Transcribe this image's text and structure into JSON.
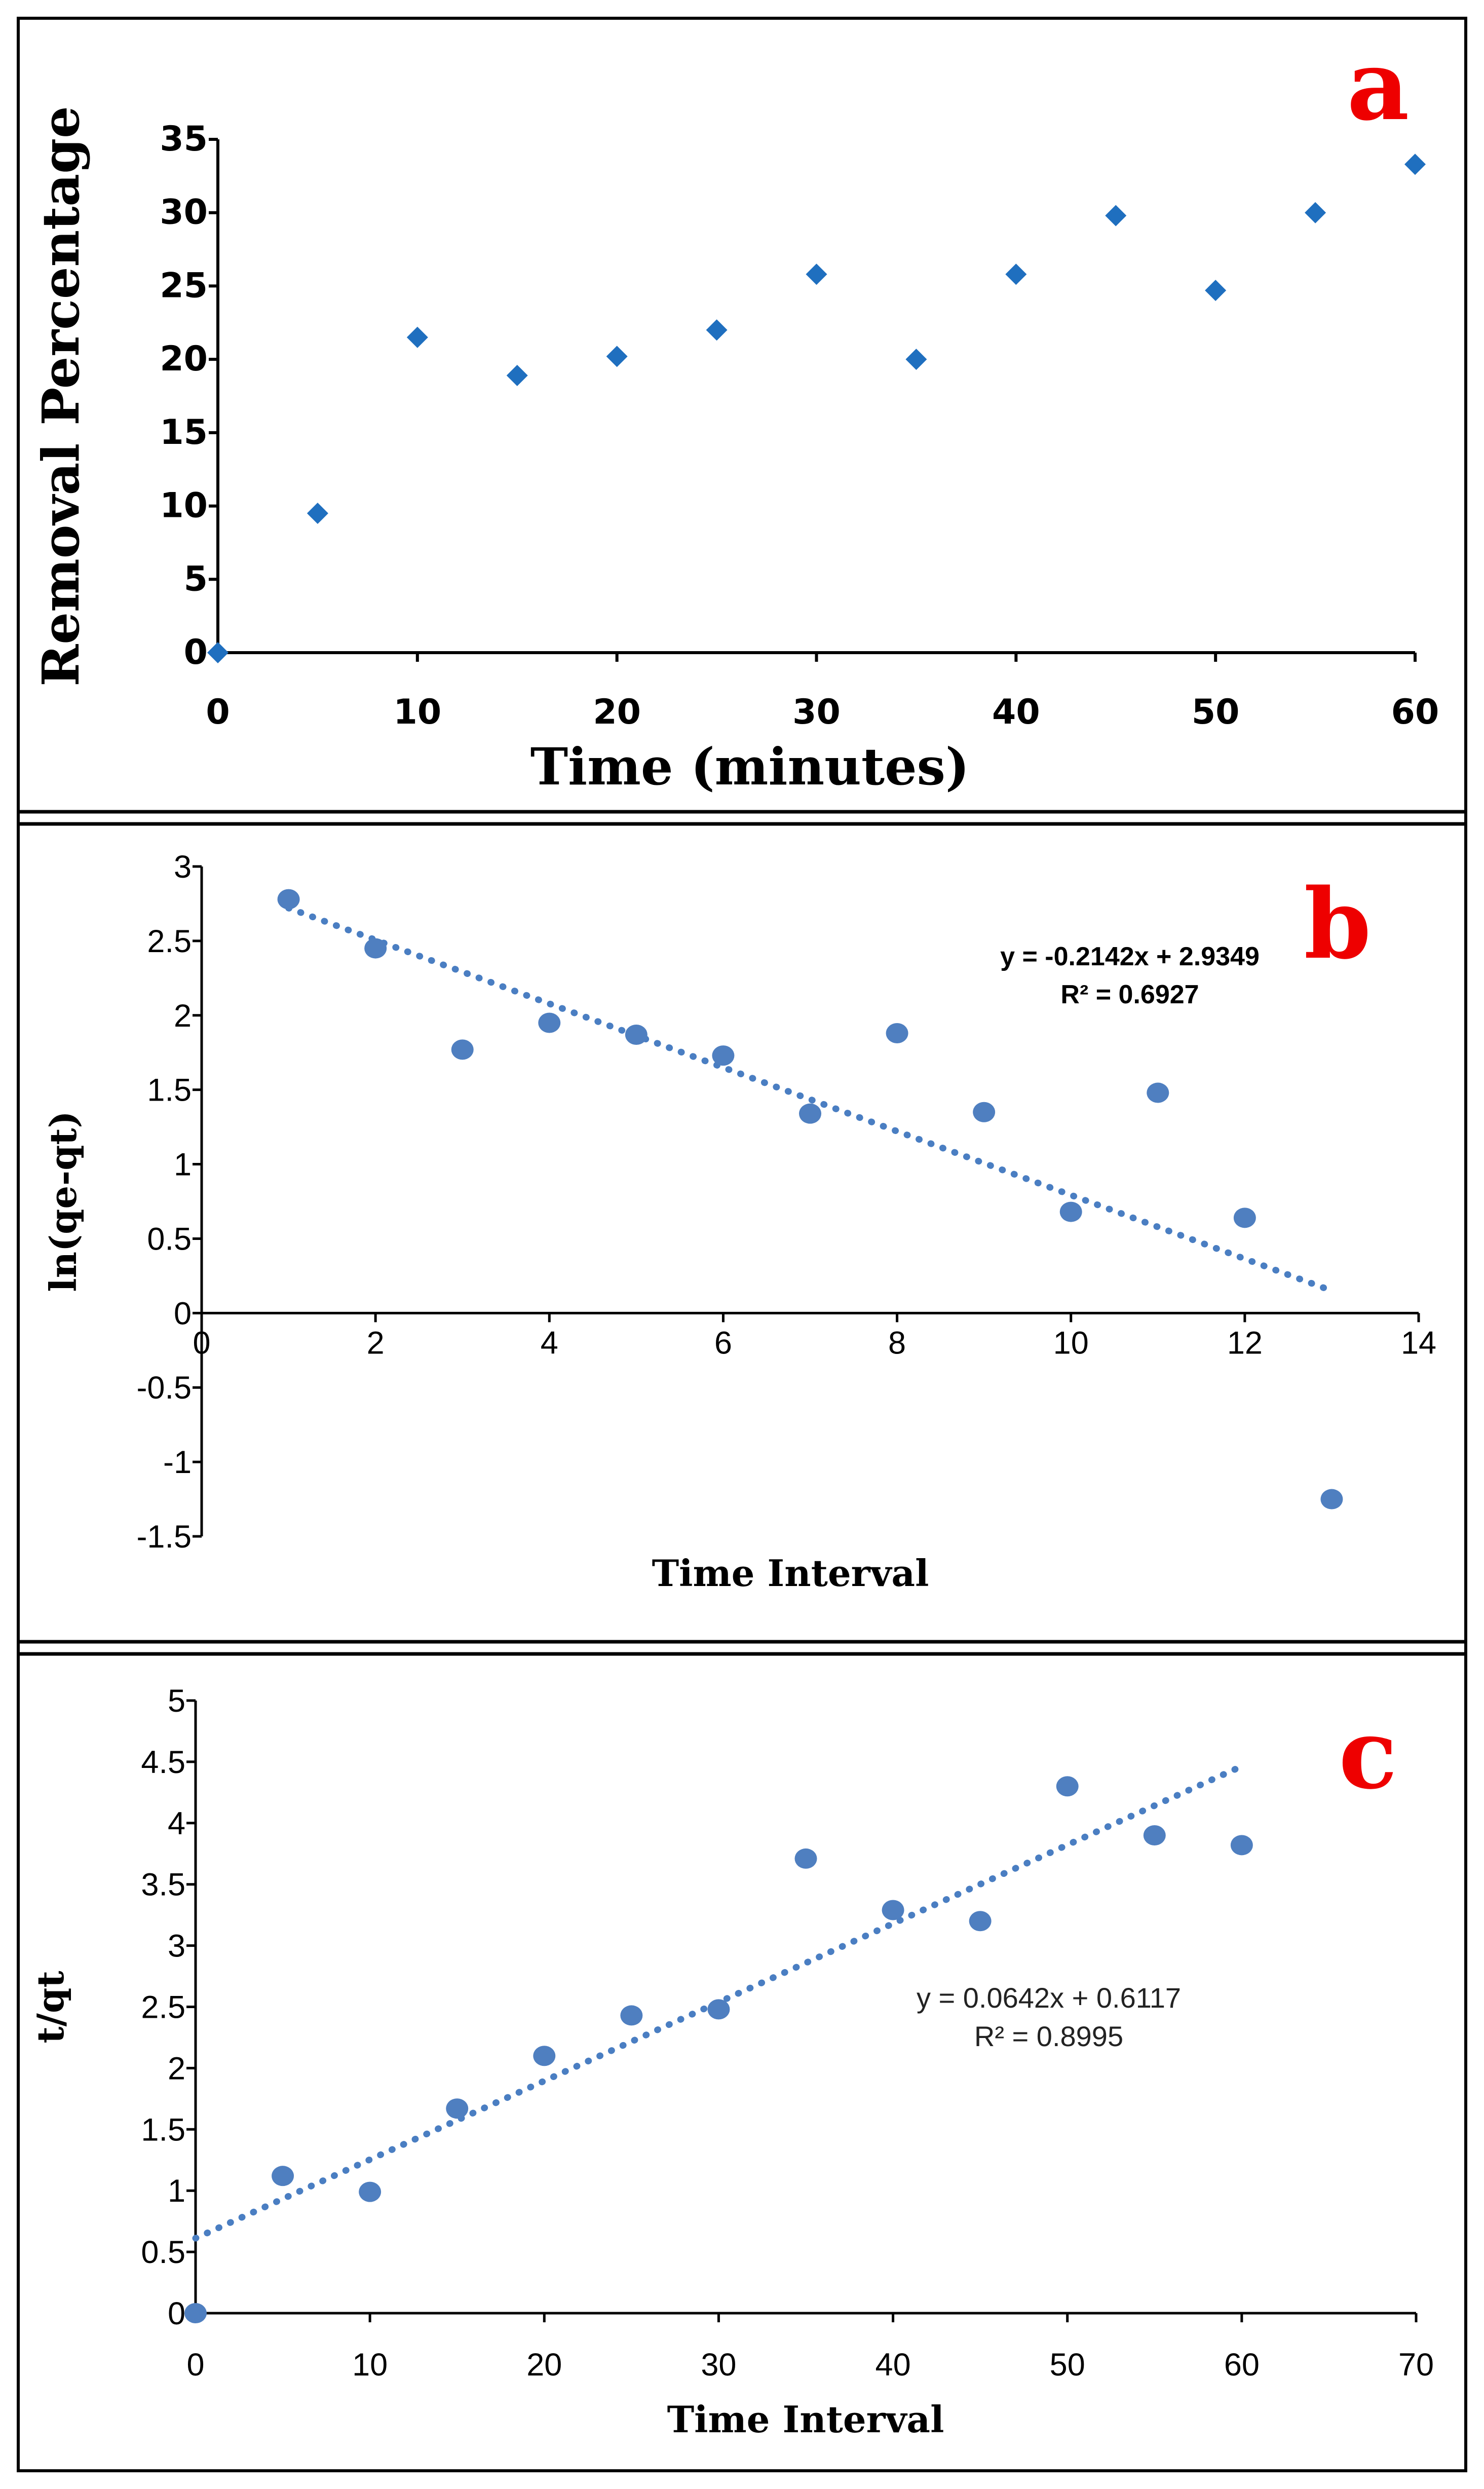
{
  "colors": {
    "diamond_marker": "#1f6fbf",
    "circle_marker": "#4f7fc0",
    "trendline": "#4a7ec2",
    "panel_letter": "#ee0000",
    "frame": "#000000"
  },
  "chart_data": [
    {
      "panel": "a",
      "type": "scatter",
      "marker": "diamond",
      "title": "",
      "xlabel": "Time (minutes)",
      "ylabel": "Removal Percentage",
      "xlim": [
        0,
        60
      ],
      "ylim": [
        0,
        35
      ],
      "xticks": [
        0,
        10,
        20,
        30,
        40,
        50,
        60
      ],
      "yticks": [
        0,
        5,
        10,
        15,
        20,
        25,
        30,
        35
      ],
      "x": [
        0,
        5,
        10,
        15,
        20,
        25,
        30,
        35,
        40,
        45,
        50,
        55,
        60
      ],
      "y": [
        0,
        9.5,
        21.5,
        18.9,
        20.2,
        22.0,
        25.8,
        20.0,
        25.8,
        29.8,
        24.7,
        30.0,
        33.3
      ],
      "grid": false
    },
    {
      "panel": "b",
      "type": "scatter",
      "marker": "circle",
      "title": "",
      "xlabel": "Time Interval",
      "ylabel": "ln(qe-qt)",
      "xlim": [
        0,
        14
      ],
      "ylim": [
        -1.5,
        3
      ],
      "xticks": [
        0,
        2,
        4,
        6,
        8,
        10,
        12,
        14
      ],
      "yticks": [
        -1.5,
        -1,
        -0.5,
        0,
        0.5,
        1,
        1.5,
        2,
        2.5,
        3
      ],
      "ytick_labels": [
        "-1.5",
        "-1",
        "-0.5",
        "0",
        "0.5",
        "1",
        "1.5",
        "2",
        "2.5",
        "3"
      ],
      "x": [
        1,
        2,
        3,
        4,
        5,
        6,
        7,
        8,
        9,
        10,
        11,
        12,
        13
      ],
      "y": [
        2.78,
        2.45,
        1.77,
        1.95,
        1.87,
        1.73,
        1.34,
        1.88,
        1.35,
        0.68,
        1.48,
        0.64,
        -1.25
      ],
      "trendline": {
        "slope": -0.2142,
        "intercept": 2.9349,
        "x_range": [
          1,
          13
        ]
      },
      "equation": "y = -0.2142x + 2.9349",
      "r_squared": "R² = 0.6927",
      "grid": false
    },
    {
      "panel": "c",
      "type": "scatter",
      "marker": "circle",
      "title": "",
      "xlabel": "Time Interval",
      "ylabel": "t/qt",
      "xlim": [
        0,
        70
      ],
      "ylim": [
        0,
        5
      ],
      "xticks": [
        0,
        10,
        20,
        30,
        40,
        50,
        60,
        70
      ],
      "yticks": [
        0,
        0.5,
        1,
        1.5,
        2,
        2.5,
        3,
        3.5,
        4,
        4.5,
        5
      ],
      "ytick_labels": [
        "0",
        "0.5",
        "1",
        "1.5",
        "2",
        "2.5",
        "3",
        "3.5",
        "4",
        "4.5",
        "5"
      ],
      "x": [
        0,
        5,
        10,
        15,
        20,
        25,
        30,
        35,
        40,
        45,
        50,
        55,
        60
      ],
      "y": [
        0,
        1.12,
        0.99,
        1.67,
        2.1,
        2.43,
        2.48,
        3.71,
        3.29,
        3.2,
        4.3,
        3.9,
        3.82
      ],
      "trendline": {
        "slope": 0.0642,
        "intercept": 0.6117,
        "x_range": [
          0,
          60
        ]
      },
      "equation": "y = 0.0642x + 0.6117",
      "r_squared": "R² = 0.8995",
      "grid": false
    }
  ]
}
